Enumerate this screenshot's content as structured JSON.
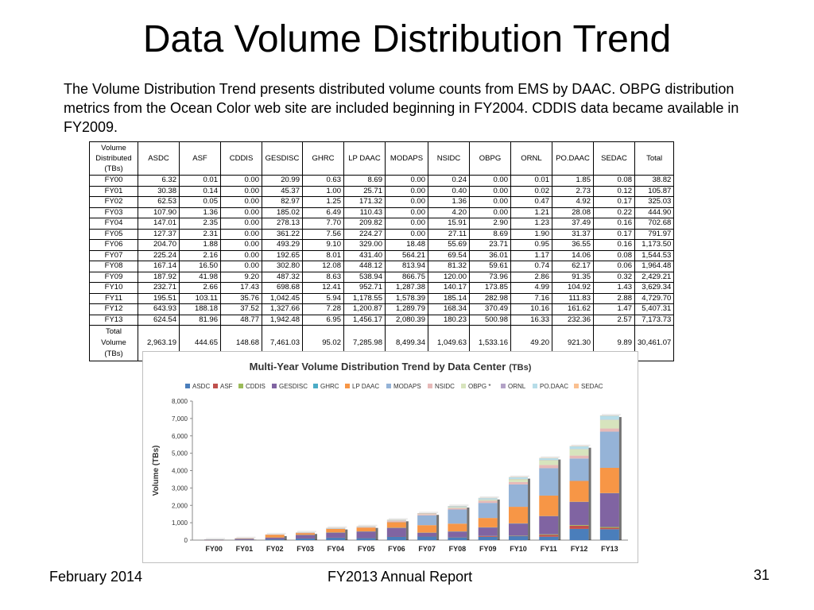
{
  "slide": {
    "title": "Data Volume Distribution Trend",
    "intro": "The Volume Distribution Trend presents distributed volume counts from EMS by DAAC.  OBPG distribution metrics from the Ocean Color web site are included beginning in FY2004. CDDIS data became available in FY2009."
  },
  "table": {
    "corner_header": [
      "Volume",
      "Distributed",
      "(TBs)"
    ],
    "columns": [
      "ASDC",
      "ASF",
      "CDDIS",
      "GESDISC",
      "GHRC",
      "LP DAAC",
      "MODAPS",
      "NSIDC",
      "OBPG",
      "ORNL",
      "PO.DAAC",
      "SEDAC",
      "Total"
    ],
    "rows": [
      {
        "label": "FY00",
        "values": [
          "6.32",
          "0.01",
          "0.00",
          "20.99",
          "0.63",
          "8.69",
          "0.00",
          "0.24",
          "0.00",
          "0.01",
          "1.85",
          "0.08",
          "38.82"
        ]
      },
      {
        "label": "FY01",
        "values": [
          "30.38",
          "0.14",
          "0.00",
          "45.37",
          "1.00",
          "25.71",
          "0.00",
          "0.40",
          "0.00",
          "0.02",
          "2.73",
          "0.12",
          "105.87"
        ]
      },
      {
        "label": "FY02",
        "values": [
          "62.53",
          "0.05",
          "0.00",
          "82.97",
          "1.25",
          "171.32",
          "0.00",
          "1.36",
          "0.00",
          "0.47",
          "4.92",
          "0.17",
          "325.03"
        ]
      },
      {
        "label": "FY03",
        "values": [
          "107.90",
          "1.36",
          "0.00",
          "185.02",
          "6.49",
          "110.43",
          "0.00",
          "4.20",
          "0.00",
          "1.21",
          "28.08",
          "0.22",
          "444.90"
        ]
      },
      {
        "label": "FY04",
        "values": [
          "147.01",
          "2.35",
          "0.00",
          "278.13",
          "7.70",
          "209.82",
          "0.00",
          "15.91",
          "2.90",
          "1.23",
          "37.49",
          "0.16",
          "702.68"
        ]
      },
      {
        "label": "FY05",
        "values": [
          "127.37",
          "2.31",
          "0.00",
          "361.22",
          "7.56",
          "224.27",
          "0.00",
          "27.11",
          "8.69",
          "1.90",
          "31.37",
          "0.17",
          "791.97"
        ]
      },
      {
        "label": "FY06",
        "values": [
          "204.70",
          "1.88",
          "0.00",
          "493.29",
          "9.10",
          "329.00",
          "18.48",
          "55.69",
          "23.71",
          "0.95",
          "36.55",
          "0.16",
          "1,173.50"
        ]
      },
      {
        "label": "FY07",
        "values": [
          "225.24",
          "2.16",
          "0.00",
          "192.65",
          "8.01",
          "431.40",
          "564.21",
          "69.54",
          "36.01",
          "1.17",
          "14.06",
          "0.08",
          "1,544.53"
        ]
      },
      {
        "label": "FY08",
        "values": [
          "167.14",
          "16.50",
          "0.00",
          "302.80",
          "12.08",
          "448.12",
          "813.94",
          "81.32",
          "59.61",
          "0.74",
          "62.17",
          "0.06",
          "1,964.48"
        ]
      },
      {
        "label": "FY09",
        "values": [
          "187.92",
          "41.98",
          "9.20",
          "487.32",
          "8.63",
          "538.94",
          "866.75",
          "120.00",
          "73.96",
          "2.86",
          "91.35",
          "0.32",
          "2,429.21"
        ]
      },
      {
        "label": "FY10",
        "values": [
          "232.71",
          "2.66",
          "17.43",
          "698.68",
          "12.41",
          "952.71",
          "1,287.38",
          "140.17",
          "173.85",
          "4.99",
          "104.92",
          "1.43",
          "3,629.34"
        ]
      },
      {
        "label": "FY11",
        "values": [
          "195.51",
          "103.11",
          "35.76",
          "1,042.45",
          "5.94",
          "1,178.55",
          "1,578.39",
          "185.14",
          "282.98",
          "7.16",
          "111.83",
          "2.88",
          "4,729.70"
        ]
      },
      {
        "label": "FY12",
        "values": [
          "643.93",
          "188.18",
          "37.52",
          "1,327.66",
          "7.28",
          "1,200.87",
          "1,289.79",
          "168.34",
          "370.49",
          "10.16",
          "161.62",
          "1.47",
          "5,407.31"
        ]
      },
      {
        "label": "FY13",
        "values": [
          "624.54",
          "81.96",
          "48.77",
          "1,942.48",
          "6.95",
          "1,456.17",
          "2,080.39",
          "180.23",
          "500.98",
          "16.33",
          "232.36",
          "2.57",
          "7,173.73"
        ]
      }
    ],
    "total_row": {
      "label": [
        "Total Volume",
        "(TBs)"
      ],
      "values": [
        "2,963.19",
        "444.65",
        "148.68",
        "7,461.03",
        "95.02",
        "7,285.98",
        "8,499.34",
        "1,049.63",
        "1,533.16",
        "49.20",
        "921.30",
        "9.89",
        "30,461.07"
      ]
    }
  },
  "chart_data": {
    "type": "bar",
    "stacked": true,
    "title": "Multi-Year Volume Distribution  Trend by Data Center",
    "title_suffix": "(TBs)",
    "xlabel": "",
    "ylabel": "Volume (TBs)",
    "ylim": [
      0,
      8000
    ],
    "yticks": [
      "0",
      "1,000",
      "2,000",
      "3,000",
      "4,000",
      "5,000",
      "6,000",
      "7,000",
      "8,000"
    ],
    "ytick_values": [
      0,
      1000,
      2000,
      3000,
      4000,
      5000,
      6000,
      7000,
      8000
    ],
    "legend_position": "top",
    "categories": [
      "FY00",
      "FY01",
      "FY02",
      "FY03",
      "FY04",
      "FY05",
      "FY06",
      "FY07",
      "FY08",
      "FY09",
      "FY10",
      "FY11",
      "FY12",
      "FY13"
    ],
    "series": [
      {
        "name": "ASDC",
        "color": "#4a7ebb",
        "values": [
          6.32,
          30.38,
          62.53,
          107.9,
          147.01,
          127.37,
          204.7,
          225.24,
          167.14,
          187.92,
          232.71,
          195.51,
          643.93,
          624.54
        ]
      },
      {
        "name": "ASF",
        "color": "#c0504d",
        "values": [
          0.01,
          0.14,
          0.05,
          1.36,
          2.35,
          2.31,
          1.88,
          2.16,
          16.5,
          41.98,
          2.66,
          103.11,
          188.18,
          81.96
        ]
      },
      {
        "name": "CDDIS",
        "color": "#9bbb59",
        "values": [
          0,
          0,
          0,
          0,
          0,
          0,
          0,
          0,
          0,
          9.2,
          17.43,
          35.76,
          37.52,
          48.77
        ]
      },
      {
        "name": "GESDISC",
        "color": "#8064a2",
        "values": [
          20.99,
          45.37,
          82.97,
          185.02,
          278.13,
          361.22,
          493.29,
          192.65,
          302.8,
          487.32,
          698.68,
          1042.45,
          1327.66,
          1942.48
        ]
      },
      {
        "name": "GHRC",
        "color": "#4bacc6",
        "values": [
          0.63,
          1.0,
          1.25,
          6.49,
          7.7,
          7.56,
          9.1,
          8.01,
          12.08,
          8.63,
          12.41,
          5.94,
          7.28,
          6.95
        ]
      },
      {
        "name": "LP DAAC",
        "color": "#f79646",
        "values": [
          8.69,
          25.71,
          171.32,
          110.43,
          209.82,
          224.27,
          329.0,
          431.4,
          448.12,
          538.94,
          952.71,
          1178.55,
          1200.87,
          1456.17
        ]
      },
      {
        "name": "MODAPS",
        "color": "#95b3d7",
        "values": [
          0,
          0,
          0,
          0,
          0,
          0,
          18.48,
          564.21,
          813.94,
          866.75,
          1287.38,
          1578.39,
          1289.79,
          2080.39
        ]
      },
      {
        "name": "NSIDC",
        "color": "#e6b9b8",
        "values": [
          0.24,
          0.4,
          1.36,
          4.2,
          15.91,
          27.11,
          55.69,
          69.54,
          81.32,
          120.0,
          140.17,
          185.14,
          168.34,
          180.23
        ]
      },
      {
        "name": "OBPG *",
        "color": "#d7e4bd",
        "values": [
          0,
          0,
          0,
          0,
          2.9,
          8.69,
          23.71,
          36.01,
          59.61,
          73.96,
          173.85,
          282.98,
          370.49,
          500.98
        ]
      },
      {
        "name": "ORNL",
        "color": "#b3a2c7",
        "values": [
          0.01,
          0.02,
          0.47,
          1.21,
          1.23,
          1.9,
          0.95,
          1.17,
          0.74,
          2.86,
          4.99,
          7.16,
          10.16,
          16.33
        ]
      },
      {
        "name": "PO.DAAC",
        "color": "#b7dde8",
        "values": [
          1.85,
          2.73,
          4.92,
          28.08,
          37.49,
          31.37,
          36.55,
          14.06,
          62.17,
          91.35,
          104.92,
          111.83,
          161.62,
          232.36
        ]
      },
      {
        "name": "SEDAC",
        "color": "#fac090",
        "values": [
          0.08,
          0.12,
          0.17,
          0.22,
          0.16,
          0.17,
          0.16,
          0.08,
          0.06,
          0.32,
          1.43,
          2.88,
          1.47,
          2.57
        ]
      }
    ]
  },
  "footer": {
    "date": "February 2014",
    "report": "FY2013 Annual Report",
    "page_number": "31"
  }
}
